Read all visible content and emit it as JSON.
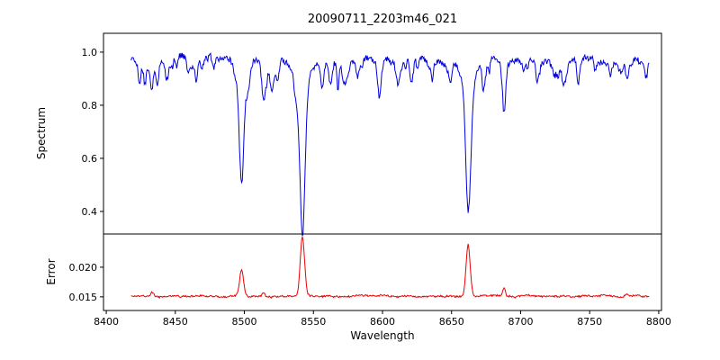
{
  "chart_data": {
    "type": "line",
    "title": "20090711_2203m46_021",
    "xlabel": "Wavelength",
    "grid": false,
    "legend": null,
    "xlim": [
      8398,
      8802
    ],
    "x_ticks": [
      8400,
      8450,
      8500,
      8550,
      8600,
      8650,
      8700,
      8750,
      8800
    ],
    "x_tick_labels": [
      "8400",
      "8450",
      "8500",
      "8550",
      "8600",
      "8650",
      "8700",
      "8750",
      "8800"
    ],
    "x_data_range": [
      8418,
      8793
    ],
    "sample_step": 0.5,
    "panels": [
      {
        "name": "spectrum",
        "ylabel": "Spectrum",
        "color": "#0000dd",
        "ylim": [
          0.315,
          1.071
        ],
        "y_ticks": [
          0.4,
          0.6,
          0.8,
          1.0
        ],
        "y_tick_labels": [
          "0.4",
          "0.6",
          "0.8",
          "1.0"
        ],
        "continuum": 0.975,
        "noise": {
          "fast": 0.011,
          "slow": 0.005,
          "seed": 1234567
        },
        "absorption_lines": [
          {
            "center": 8424,
            "depth": 0.06,
            "width": 0.8
          },
          {
            "center": 8428,
            "depth": 0.09,
            "width": 0.9
          },
          {
            "center": 8433,
            "depth": 0.12,
            "width": 1.0
          },
          {
            "center": 8437,
            "depth": 0.1,
            "width": 0.9
          },
          {
            "center": 8443,
            "depth": 0.06,
            "width": 0.8
          },
          {
            "center": 8451,
            "depth": 0.05,
            "width": 0.8
          },
          {
            "center": 8465,
            "depth": 0.08,
            "width": 1.0
          },
          {
            "center": 8478,
            "depth": 0.05,
            "width": 0.9
          },
          {
            "center": 8498,
            "depth": 0.43,
            "width": 1.5
          },
          {
            "center": 8514,
            "depth": 0.15,
            "width": 1.1
          },
          {
            "center": 8520,
            "depth": 0.06,
            "width": 0.9
          },
          {
            "center": 8542,
            "depth": 0.62,
            "width": 1.8
          },
          {
            "center": 8556,
            "depth": 0.08,
            "width": 1.0
          },
          {
            "center": 8568,
            "depth": 0.04,
            "width": 0.9
          },
          {
            "center": 8582,
            "depth": 0.07,
            "width": 1.0
          },
          {
            "center": 8598,
            "depth": 0.1,
            "width": 1.1
          },
          {
            "center": 8611,
            "depth": 0.04,
            "width": 0.9
          },
          {
            "center": 8621,
            "depth": 0.05,
            "width": 0.9
          },
          {
            "center": 8634,
            "depth": 0.04,
            "width": 0.9
          },
          {
            "center": 8648,
            "depth": 0.05,
            "width": 0.9
          },
          {
            "center": 8662,
            "depth": 0.58,
            "width": 1.7
          },
          {
            "center": 8674,
            "depth": 0.07,
            "width": 1.0
          },
          {
            "center": 8688,
            "depth": 0.2,
            "width": 1.1
          },
          {
            "center": 8702,
            "depth": 0.04,
            "width": 0.9
          },
          {
            "center": 8713,
            "depth": 0.06,
            "width": 1.0
          },
          {
            "center": 8727,
            "depth": 0.04,
            "width": 0.9
          },
          {
            "center": 8742,
            "depth": 0.06,
            "width": 1.0
          },
          {
            "center": 8754,
            "depth": 0.04,
            "width": 0.9
          },
          {
            "center": 8765,
            "depth": 0.05,
            "width": 0.9
          },
          {
            "center": 8777,
            "depth": 0.07,
            "width": 1.0
          }
        ],
        "weak_lines": {
          "count": 55,
          "depth_min": 0.015,
          "depth_max": 0.07,
          "sigma_min": 0.5,
          "sigma_max": 1.4,
          "seed": 99
        }
      },
      {
        "name": "error",
        "ylabel": "Error",
        "color": "#ee0000",
        "ylim": [
          0.0127,
          0.0256
        ],
        "y_ticks": [
          0.015,
          0.02
        ],
        "y_tick_labels": [
          "0.015",
          "0.020"
        ],
        "baseline": 0.0151,
        "noise": {
          "fast": 0.00013,
          "slow": 7e-05,
          "seed": 777
        },
        "peaks": [
          {
            "center": 8433,
            "height": 0.0006,
            "width": 1.0
          },
          {
            "center": 8498,
            "height": 0.0045,
            "width": 1.4
          },
          {
            "center": 8514,
            "height": 0.0007,
            "width": 1.0
          },
          {
            "center": 8542,
            "height": 0.01,
            "width": 1.6
          },
          {
            "center": 8662,
            "height": 0.0088,
            "width": 1.5
          },
          {
            "center": 8688,
            "height": 0.0014,
            "width": 1.0
          },
          {
            "center": 8777,
            "height": 0.0005,
            "width": 0.9
          }
        ]
      }
    ]
  }
}
